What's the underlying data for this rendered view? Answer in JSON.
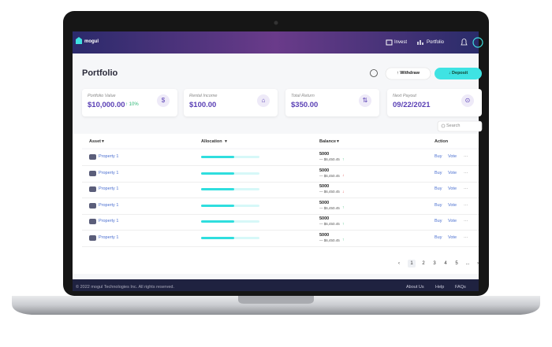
{
  "header": {
    "brand": "mogul",
    "nav": [
      "Invest",
      "Portfolio"
    ]
  },
  "page": {
    "title": "Portfolio",
    "buttons": [
      "Withdraw",
      "Deposit"
    ]
  },
  "cards": [
    {
      "label": "Portfolio Value",
      "value": "$10,000.00",
      "change": "↑ 10%"
    },
    {
      "label": "Rental Income",
      "value": "$100.00"
    },
    {
      "label": "Total Return",
      "value": "$350.00"
    },
    {
      "label": "Next Payout",
      "value": "09/22/2021"
    }
  ],
  "search": "Search",
  "table": {
    "columns": [
      "Asset",
      "Allocation",
      "Balance",
      "Action"
    ],
    "rows": [
      {
        "asset": "Property 1",
        "balance": "5000",
        "sub": "— $6,450.45",
        "trend": "↑",
        "actions": [
          "Buy",
          "Vote",
          "···"
        ]
      },
      {
        "asset": "Property 1",
        "balance": "5000",
        "sub": "— $6,450.45",
        "trend": "↓",
        "actions": [
          "Buy",
          "Vote",
          "···"
        ]
      },
      {
        "asset": "Property 1",
        "balance": "5000",
        "sub": "— $6,450.45",
        "trend": "↓",
        "actions": [
          "Buy",
          "Vote",
          "···"
        ]
      },
      {
        "asset": "Property 1",
        "balance": "5000",
        "sub": "— $6,450.45",
        "trend": "↑",
        "actions": [
          "Buy",
          "Vote",
          "···"
        ]
      },
      {
        "asset": "Property 1",
        "balance": "5000",
        "sub": "— $6,450.45",
        "trend": "↑",
        "actions": [
          "Buy",
          "Vote",
          "···"
        ]
      },
      {
        "asset": "Property 1",
        "balance": "5000",
        "sub": "— $6,450.45",
        "trend": "↑",
        "actions": [
          "Buy",
          "Vote",
          "···"
        ]
      }
    ]
  },
  "pagination": [
    "‹",
    "1",
    "2",
    "3",
    "4",
    "5",
    "...",
    "›"
  ],
  "footer": {
    "copyright": "© 2022 mogul Technologies Inc. All rights reserved.",
    "links": [
      "About Us",
      "Help",
      "FAQs"
    ]
  }
}
